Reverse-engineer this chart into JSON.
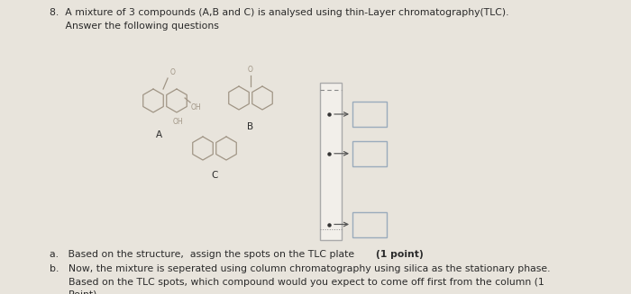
{
  "bg_color": "#d8d4cd",
  "content_bg": "#e8e4dc",
  "title": "8.  A mixture of 3 compounds (A,B and C) is analysed using thin-Layer chromatography(TLC).",
  "subtitle": "     Answer the following questions",
  "qa_normal": "a.   Based on the structure,  assign the spots on the TLC plate",
  "qa_bold": "(1 point)",
  "qb_line1": "b.   Now, the mixture is seperated using column chromatography using silica as the stationary phase.",
  "qb_line2": "      Based on the TLC spots, which compound would you expect to come off first from the column (1",
  "qb_line3": "      Point)",
  "mol_color": "#a09585",
  "text_color": "#2a2a2a",
  "tlc_border": "#aaaaaa",
  "box_border": "#9aabbc",
  "arrow_color": "#555555",
  "spot_color": "#333333",
  "font_size": 7.8
}
